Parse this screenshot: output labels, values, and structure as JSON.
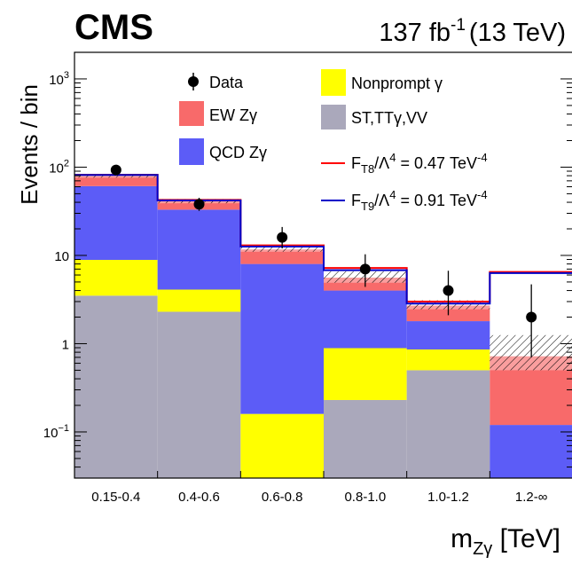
{
  "header": {
    "experiment": "CMS",
    "lumi_value": "137 fb",
    "lumi_exp": "-1",
    "energy": "(13 TeV)"
  },
  "colors": {
    "nonprompt": "#ffff00",
    "st_ttg_vv": "#aaa8bb",
    "qcd": "#5c5cf7",
    "ew": "#f86a6a",
    "ft8": "#ff0000",
    "ft9": "#0000c8",
    "data": "#000000"
  },
  "chart_data": {
    "type": "bar",
    "stacked": true,
    "log_y": true,
    "ylim": [
      0.03,
      2000
    ],
    "ylabel": "Events / bin",
    "xlabel": "m",
    "xlabel_sub": "Zγ",
    "xlabel_unit": " [TeV]",
    "categories": [
      "0.15-0.4",
      "0.4-0.6",
      "0.6-0.8",
      "0.8-1.0",
      "1.0-1.2",
      "1.2-∞"
    ],
    "y_ticks": [
      {
        "value": 0.1,
        "base": "10",
        "exp": "−1"
      },
      {
        "value": 1,
        "label": "1"
      },
      {
        "value": 10,
        "label": "10"
      },
      {
        "value": 100,
        "base": "10",
        "exp": "2"
      },
      {
        "value": 1000,
        "base": "10",
        "exp": "3"
      }
    ],
    "series": [
      {
        "name": "ST,TTγ,VV",
        "key": "st_ttg_vv",
        "values": [
          3.5,
          2.3,
          0.02,
          0.23,
          0.5,
          0.02
        ]
      },
      {
        "name": "Nonprompt γ",
        "key": "nonprompt",
        "values": [
          5.4,
          1.8,
          0.14,
          0.66,
          0.36,
          0.0
        ]
      },
      {
        "name": "QCD Zγ",
        "key": "qcd",
        "values": [
          52.1,
          28.9,
          7.84,
          3.11,
          0.94,
          0.1
        ]
      },
      {
        "name": "EW Zγ",
        "key": "ew",
        "values": [
          19.0,
          8.0,
          3.7,
          1.6,
          0.9,
          0.6
        ]
      }
    ],
    "uncertainty_band": [
      {
        "low": 76,
        "high": 84
      },
      {
        "low": 39,
        "high": 43.5
      },
      {
        "low": 11.0,
        "high": 13.0
      },
      {
        "low": 4.9,
        "high": 6.6
      },
      {
        "low": 2.45,
        "high": 3.1
      },
      {
        "low": 0.5,
        "high": 1.25
      }
    ],
    "lines": [
      {
        "name_main": "F",
        "name_sub": "T8",
        "name_rest": "/Λ",
        "name_exp": "4",
        "value_text": " = 0.47 TeV",
        "value_exp": "-4",
        "key": "ft8",
        "values": [
          82,
          42.5,
          13.0,
          7.2,
          3.0,
          6.5
        ]
      },
      {
        "name_main": "F",
        "name_sub": "T9",
        "name_rest": "/Λ",
        "name_exp": "4",
        "value_text": " = 0.91 TeV",
        "value_exp": "-4",
        "key": "ft9",
        "values": [
          81.5,
          42.0,
          12.6,
          6.8,
          2.85,
          6.3
        ]
      }
    ],
    "data": {
      "name": "Data",
      "values": [
        93,
        38,
        16,
        7,
        4,
        2
      ],
      "err_low": [
        9,
        6,
        4,
        2.6,
        1.9,
        1.3
      ],
      "err_high": [
        10,
        7,
        5,
        3.3,
        2.7,
        2.7
      ]
    }
  }
}
